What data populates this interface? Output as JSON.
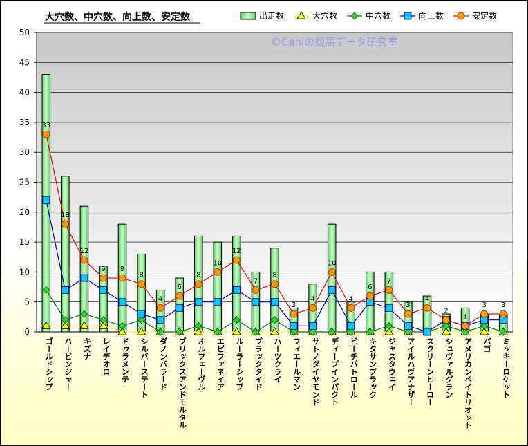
{
  "chart_data": {
    "type": "bar",
    "title": "大穴数、中穴数、向上数、安定数",
    "watermark": "©Caniの競馬データ研究室",
    "ylim": [
      0,
      50
    ],
    "yticks": [
      0,
      5,
      10,
      15,
      20,
      25,
      30,
      35,
      40,
      45,
      50
    ],
    "grid": true,
    "legend_position": "top-right",
    "categories": [
      "ゴールドシップ",
      "ハービンジャー",
      "キズナ",
      "レイデオロ",
      "ドゥラメンテ",
      "シルバーステート",
      "ダノンバラード",
      "ブリックスアンドモルタル",
      "オルフェーヴル",
      "エピファネイア",
      "ルーラーシップ",
      "ブラックタイド",
      "ハーツクライ",
      "フィエールマン",
      "サトノダイヤモンド",
      "ディープインパクト",
      "ビーチパトロール",
      "キタサンブラック",
      "ジャスタウェイ",
      "アイルハヴアナザー",
      "スクリーンヒーロー",
      "シュヴァルグラン",
      "アメリカンペイトリオット",
      "バゴ",
      "ミッキーロケット"
    ],
    "series": [
      {
        "name": "出走数",
        "kind": "bar",
        "color": "#99ee99",
        "values": [
          43,
          26,
          21,
          11,
          18,
          13,
          7,
          9,
          16,
          15,
          16,
          10,
          14,
          4,
          8,
          18,
          5,
          10,
          10,
          5,
          6,
          3,
          4,
          3,
          3
        ]
      },
      {
        "name": "大穴数",
        "kind": "line",
        "color": "#ffff00",
        "marker": "triangle",
        "values": [
          1,
          1,
          1,
          1,
          0,
          0,
          0,
          0,
          0,
          0,
          0,
          0,
          0,
          0,
          0,
          0,
          0,
          0,
          0,
          0,
          0,
          0,
          0,
          0,
          0
        ]
      },
      {
        "name": "中穴数",
        "kind": "line",
        "color": "#008000",
        "marker": "diamond",
        "values": [
          7,
          2,
          3,
          2,
          1,
          2,
          0,
          0,
          1,
          0,
          2,
          0,
          2,
          0,
          0,
          0,
          0,
          0,
          1,
          0,
          0,
          1,
          0,
          1,
          0
        ]
      },
      {
        "name": "向上数",
        "kind": "line",
        "color": "#0000cc",
        "marker": "square",
        "values": [
          22,
          7,
          9,
          7,
          5,
          3,
          2,
          4,
          5,
          5,
          7,
          5,
          5,
          1,
          1,
          7,
          1,
          5,
          4,
          1,
          0,
          2,
          1,
          2,
          2
        ]
      },
      {
        "name": "安定数",
        "kind": "line",
        "color": "#ff0000",
        "marker": "circle",
        "values": [
          33,
          18,
          12,
          9,
          9,
          8,
          4,
          6,
          8,
          10,
          12,
          7,
          8,
          3,
          4,
          10,
          4,
          6,
          7,
          3,
          4,
          2,
          1,
          3,
          3
        ]
      }
    ]
  }
}
